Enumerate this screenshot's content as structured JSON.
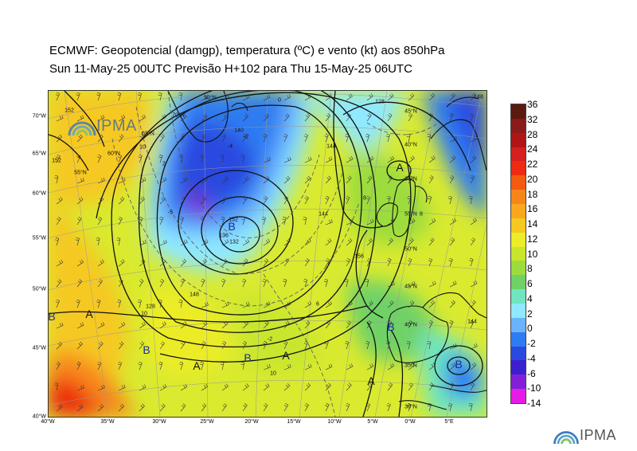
{
  "header": {
    "line1": "ECMWF:  Geopotencial (damgp), temperatura (ºC) e vento (kt) aos 850hPa",
    "line2": "Sun 11-May-25 00UTC Previsão H+102 para Thu 15-May-25 06UTC"
  },
  "logo_text": "IPMA",
  "axes": {
    "lon_labels": [
      "40°W",
      "35°W",
      "30°W",
      "25°W",
      "20°W",
      "15°W",
      "10°W",
      "5°W",
      "0°W",
      "5°E"
    ],
    "lat_labels": [
      "70°W",
      "65°W",
      "60°W",
      "55°W",
      "50°W",
      "45°W",
      "40°W"
    ]
  },
  "colorbar": {
    "ticks": [
      "36",
      "32",
      "28",
      "24",
      "22",
      "20",
      "18",
      "16",
      "14",
      "12",
      "10",
      "8",
      "6",
      "4",
      "2",
      "0",
      "-2",
      "-4",
      "-6",
      "-10",
      "-14"
    ],
    "colors": [
      "#5a1a10",
      "#8b1a1a",
      "#b01515",
      "#d42020",
      "#ee2b10",
      "#f45a10",
      "#f7861a",
      "#f9a81e",
      "#f6c820",
      "#ecec28",
      "#c9e62d",
      "#9cdc3c",
      "#6fd166",
      "#6fe6c0",
      "#8fe9ff",
      "#6ab4ff",
      "#2f7cf2",
      "#2b49e0",
      "#3c1fcf",
      "#8220d8",
      "#e61be6"
    ]
  },
  "pressure_labels": [
    {
      "text": "B",
      "type": "low"
    },
    {
      "text": "A",
      "type": "high"
    },
    {
      "text": "B",
      "type": "low"
    },
    {
      "text": "A",
      "type": "high"
    },
    {
      "text": "B",
      "type": "low"
    },
    {
      "text": "A",
      "type": "high"
    },
    {
      "text": "B",
      "type": "low"
    },
    {
      "text": "A",
      "type": "high"
    },
    {
      "text": "A",
      "type": "high"
    },
    {
      "text": "B",
      "type": "low"
    },
    {
      "text": "A",
      "type": "high"
    },
    {
      "text": "B",
      "type": "low"
    }
  ],
  "contour_labels": [
    "152",
    "148",
    "144",
    "140",
    "136",
    "132",
    "128",
    "128",
    "144",
    "148",
    "152",
    "156",
    "152",
    "144"
  ],
  "isotherm_labels": [
    "-4",
    "-2",
    "0",
    "2",
    "-5",
    "10",
    "10",
    "6",
    "8",
    "8",
    "-2",
    "10"
  ],
  "lat_grid_labels": [
    "70°N",
    "65°N",
    "60°N",
    "55°N",
    "50°N",
    "45°N",
    "40°N",
    "35°N",
    "30°N",
    "55°N",
    "50°N",
    "45°N",
    "40°N",
    "35°N"
  ]
}
